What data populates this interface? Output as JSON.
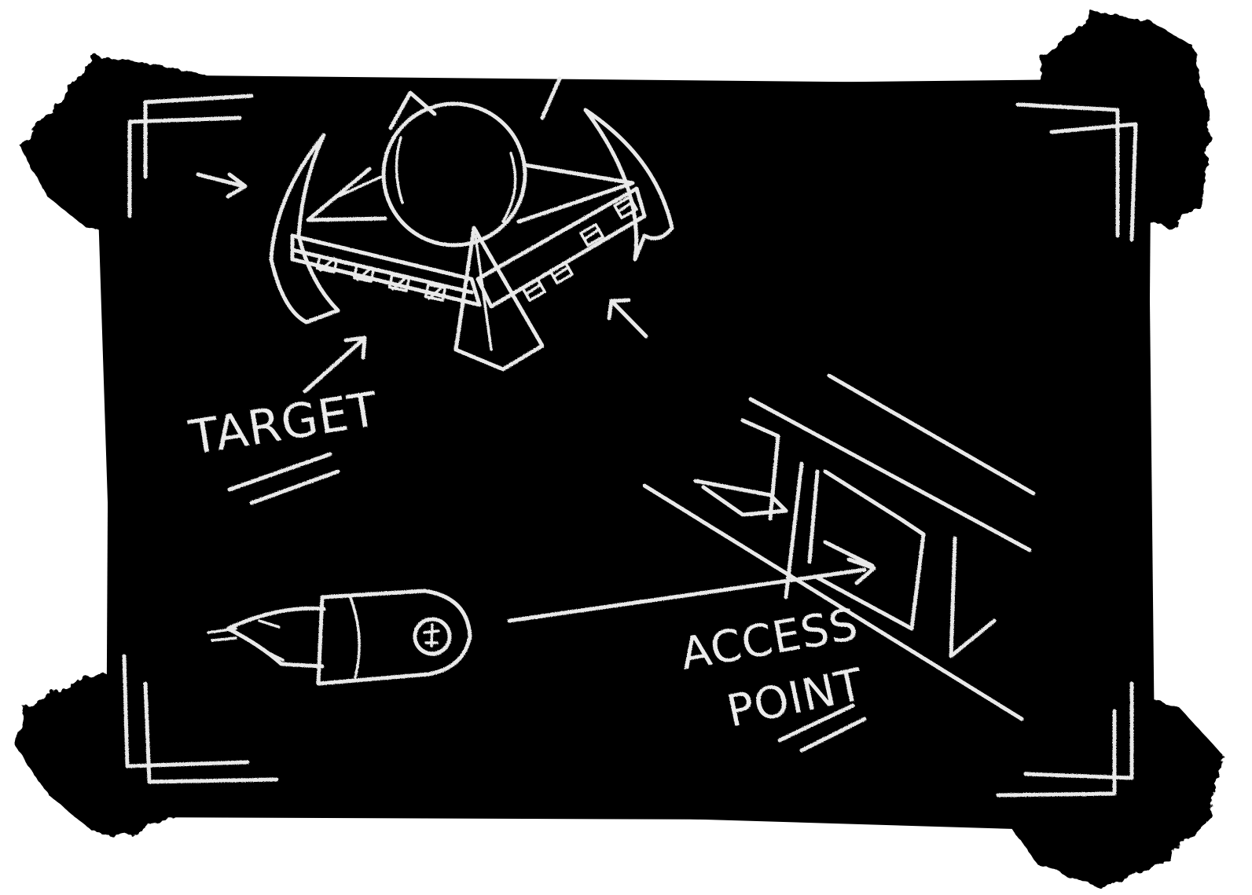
{
  "labels": {
    "target": "TARGET",
    "access_line1": "ACCESS",
    "access_line2": "POINT"
  },
  "colors": {
    "board": "#000000",
    "tape": "#050505",
    "chalk": "#e9e9e9",
    "background": "#ffffff"
  },
  "icons": {
    "target_ship": "triangular-station-icon",
    "missile": "missile-icon",
    "structure": "girder-structure-icon",
    "arrows": "arrow-icon",
    "corners": "viewfinder-corner-icon"
  }
}
